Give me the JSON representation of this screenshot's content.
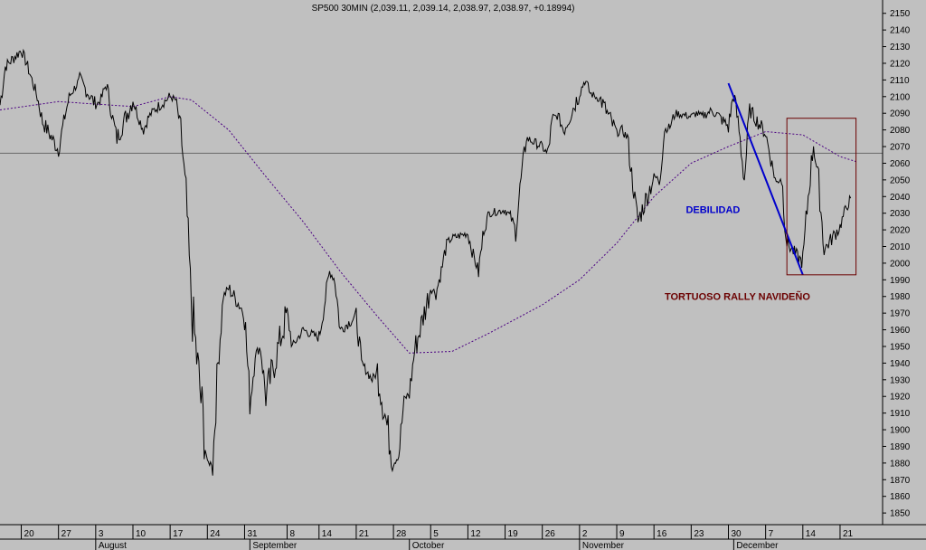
{
  "chart_data": {
    "type": "line",
    "title": "SP500 30MIN (2,039.11, 2,039.14, 2,038.97, 2,038.97, +0.18994)",
    "ylim": [
      1843,
      2158
    ],
    "y_ticks": [
      1850,
      1860,
      1870,
      1880,
      1890,
      1900,
      1910,
      1920,
      1930,
      1940,
      1950,
      1960,
      1970,
      1980,
      1990,
      2000,
      2010,
      2020,
      2030,
      2040,
      2050,
      2060,
      2070,
      2080,
      2090,
      2100,
      2110,
      2120,
      2130,
      2140,
      2150
    ],
    "x_range": [
      "2015-07-16",
      "2015-12-29"
    ],
    "x_day_ticks": [
      {
        "label": "20",
        "date": "2015-07-20"
      },
      {
        "label": "27",
        "date": "2015-07-27"
      },
      {
        "label": "3",
        "date": "2015-08-03"
      },
      {
        "label": "10",
        "date": "2015-08-10"
      },
      {
        "label": "17",
        "date": "2015-08-17"
      },
      {
        "label": "24",
        "date": "2015-08-24"
      },
      {
        "label": "31",
        "date": "2015-08-31"
      },
      {
        "label": "8",
        "date": "2015-09-08"
      },
      {
        "label": "14",
        "date": "2015-09-14"
      },
      {
        "label": "21",
        "date": "2015-09-21"
      },
      {
        "label": "28",
        "date": "2015-09-28"
      },
      {
        "label": "5",
        "date": "2015-10-05"
      },
      {
        "label": "12",
        "date": "2015-10-12"
      },
      {
        "label": "19",
        "date": "2015-10-19"
      },
      {
        "label": "26",
        "date": "2015-10-26"
      },
      {
        "label": "2",
        "date": "2015-11-02"
      },
      {
        "label": "9",
        "date": "2015-11-09"
      },
      {
        "label": "16",
        "date": "2015-11-16"
      },
      {
        "label": "23",
        "date": "2015-11-23"
      },
      {
        "label": "30",
        "date": "2015-11-30"
      },
      {
        "label": "7",
        "date": "2015-12-07"
      },
      {
        "label": "14",
        "date": "2015-12-14"
      },
      {
        "label": "21",
        "date": "2015-12-21"
      }
    ],
    "x_month_ticks": [
      {
        "label": "August",
        "date": "2015-08-03"
      },
      {
        "label": "September",
        "date": "2015-09-01"
      },
      {
        "label": "October",
        "date": "2015-10-01"
      },
      {
        "label": "November",
        "date": "2015-11-02"
      },
      {
        "label": "December",
        "date": "2015-12-01"
      }
    ],
    "series": [
      {
        "type": "price",
        "color": "#000000",
        "points": [
          [
            "2015-07-16",
            2095
          ],
          [
            "2015-07-17",
            2118
          ],
          [
            "2015-07-20",
            2128
          ],
          [
            "2015-07-21",
            2120
          ],
          [
            "2015-07-22",
            2110
          ],
          [
            "2015-07-23",
            2100
          ],
          [
            "2015-07-24",
            2085
          ],
          [
            "2015-07-27",
            2068
          ],
          [
            "2015-07-28",
            2085
          ],
          [
            "2015-07-29",
            2100
          ],
          [
            "2015-07-30",
            2105
          ],
          [
            "2015-07-31",
            2110
          ],
          [
            "2015-08-03",
            2095
          ],
          [
            "2015-08-04",
            2098
          ],
          [
            "2015-08-05",
            2108
          ],
          [
            "2015-08-06",
            2090
          ],
          [
            "2015-08-07",
            2075
          ],
          [
            "2015-08-10",
            2098
          ],
          [
            "2015-08-11",
            2088
          ],
          [
            "2015-08-12",
            2080
          ],
          [
            "2015-08-13",
            2088
          ],
          [
            "2015-08-14",
            2092
          ],
          [
            "2015-08-17",
            2100
          ],
          [
            "2015-08-18",
            2098
          ],
          [
            "2015-08-19",
            2080
          ],
          [
            "2015-08-20",
            2040
          ],
          [
            "2015-08-21",
            1975
          ],
          [
            "2015-08-24",
            1880
          ],
          [
            "2015-08-25",
            1880
          ],
          [
            "2015-08-26",
            1940
          ],
          [
            "2015-08-27",
            1980
          ],
          [
            "2015-08-28",
            1985
          ],
          [
            "2015-08-31",
            1970
          ],
          [
            "2015-09-01",
            1915
          ],
          [
            "2015-09-02",
            1945
          ],
          [
            "2015-09-03",
            1950
          ],
          [
            "2015-09-04",
            1920
          ],
          [
            "2015-09-08",
            1970
          ],
          [
            "2015-09-09",
            1950
          ],
          [
            "2015-09-10",
            1955
          ],
          [
            "2015-09-11",
            1960
          ],
          [
            "2015-09-14",
            1955
          ],
          [
            "2015-09-15",
            1975
          ],
          [
            "2015-09-16",
            1995
          ],
          [
            "2015-09-17",
            1990
          ],
          [
            "2015-09-18",
            1960
          ],
          [
            "2015-09-21",
            1968
          ],
          [
            "2015-09-22",
            1940
          ],
          [
            "2015-09-23",
            1935
          ],
          [
            "2015-09-24",
            1930
          ],
          [
            "2015-09-25",
            1935
          ],
          [
            "2015-09-28",
            1880
          ],
          [
            "2015-09-29",
            1885
          ],
          [
            "2015-09-30",
            1918
          ],
          [
            "2015-10-01",
            1922
          ],
          [
            "2015-10-02",
            1948
          ],
          [
            "2015-10-05",
            1985
          ],
          [
            "2015-10-06",
            1982
          ],
          [
            "2015-10-07",
            1995
          ],
          [
            "2015-10-08",
            2012
          ],
          [
            "2015-10-09",
            2015
          ],
          [
            "2015-10-12",
            2018
          ],
          [
            "2015-10-13",
            2005
          ],
          [
            "2015-10-14",
            1995
          ],
          [
            "2015-10-15",
            2020
          ],
          [
            "2015-10-16",
            2030
          ],
          [
            "2015-10-19",
            2032
          ],
          [
            "2015-10-20",
            2028
          ],
          [
            "2015-10-21",
            2020
          ],
          [
            "2015-10-22",
            2050
          ],
          [
            "2015-10-23",
            2075
          ],
          [
            "2015-10-26",
            2070
          ],
          [
            "2015-10-27",
            2065
          ],
          [
            "2015-10-28",
            2088
          ],
          [
            "2015-10-29",
            2088
          ],
          [
            "2015-10-30",
            2080
          ],
          [
            "2015-11-02",
            2102
          ],
          [
            "2015-11-03",
            2110
          ],
          [
            "2015-11-04",
            2102
          ],
          [
            "2015-11-05",
            2100
          ],
          [
            "2015-11-06",
            2098
          ],
          [
            "2015-11-09",
            2078
          ],
          [
            "2015-11-10",
            2080
          ],
          [
            "2015-11-11",
            2075
          ],
          [
            "2015-11-12",
            2048
          ],
          [
            "2015-11-13",
            2025
          ],
          [
            "2015-11-16",
            2052
          ],
          [
            "2015-11-17",
            2050
          ],
          [
            "2015-11-18",
            2080
          ],
          [
            "2015-11-19",
            2082
          ],
          [
            "2015-11-20",
            2090
          ],
          [
            "2015-11-23",
            2088
          ],
          [
            "2015-11-24",
            2090
          ],
          [
            "2015-11-25",
            2088
          ],
          [
            "2015-11-27",
            2092
          ],
          [
            "2015-11-30",
            2082
          ],
          [
            "2015-12-01",
            2102
          ],
          [
            "2015-12-02",
            2080
          ],
          [
            "2015-12-03",
            2050
          ],
          [
            "2015-12-04",
            2092
          ],
          [
            "2015-12-07",
            2078
          ],
          [
            "2015-12-08",
            2062
          ],
          [
            "2015-12-09",
            2048
          ],
          [
            "2015-12-10",
            2052
          ],
          [
            "2015-12-11",
            2012
          ],
          [
            "2015-12-14",
            2000
          ],
          [
            "2015-12-15",
            2040
          ],
          [
            "2015-12-16",
            2072
          ],
          [
            "2015-12-17",
            2048
          ],
          [
            "2015-12-18",
            2008
          ],
          [
            "2015-12-21",
            2022
          ],
          [
            "2015-12-22",
            2032
          ],
          [
            "2015-12-23",
            2039
          ]
        ]
      },
      {
        "type": "moving-average",
        "color": "#4b0082",
        "style": "dashed",
        "points": [
          [
            "2015-07-16",
            2092
          ],
          [
            "2015-07-27",
            2097
          ],
          [
            "2015-08-10",
            2094
          ],
          [
            "2015-08-17",
            2100
          ],
          [
            "2015-08-21",
            2098
          ],
          [
            "2015-08-28",
            2080
          ],
          [
            "2015-09-04",
            2052
          ],
          [
            "2015-09-11",
            2025
          ],
          [
            "2015-09-18",
            1995
          ],
          [
            "2015-09-25",
            1968
          ],
          [
            "2015-10-01",
            1946
          ],
          [
            "2015-10-09",
            1947
          ],
          [
            "2015-10-16",
            1958
          ],
          [
            "2015-10-26",
            1975
          ],
          [
            "2015-11-02",
            1990
          ],
          [
            "2015-11-09",
            2012
          ],
          [
            "2015-11-16",
            2040
          ],
          [
            "2015-11-23",
            2060
          ],
          [
            "2015-11-30",
            2070
          ],
          [
            "2015-12-07",
            2079
          ],
          [
            "2015-12-14",
            2077
          ],
          [
            "2015-12-21",
            2064
          ],
          [
            "2015-12-24",
            2061
          ]
        ]
      }
    ],
    "horizontal_line": {
      "value": 2066,
      "color": "#6a6a6a"
    },
    "trend_line": {
      "from": [
        "2015-11-30",
        2108
      ],
      "to": [
        "2015-12-14",
        1993
      ],
      "color": "#0000cc"
    },
    "box": {
      "from": [
        "2015-12-11",
        2087
      ],
      "to": [
        "2015-12-24",
        1993
      ],
      "color": "#6b0000"
    },
    "annotations": [
      {
        "text": "DEBILIDAD",
        "date": "2015-11-22",
        "value": 2030,
        "color": "#0000cc"
      },
      {
        "text": "TORTUOSO RALLY NAVIDEÑO",
        "date": "2015-11-18",
        "value": 1978,
        "color": "#6b0000"
      }
    ]
  }
}
